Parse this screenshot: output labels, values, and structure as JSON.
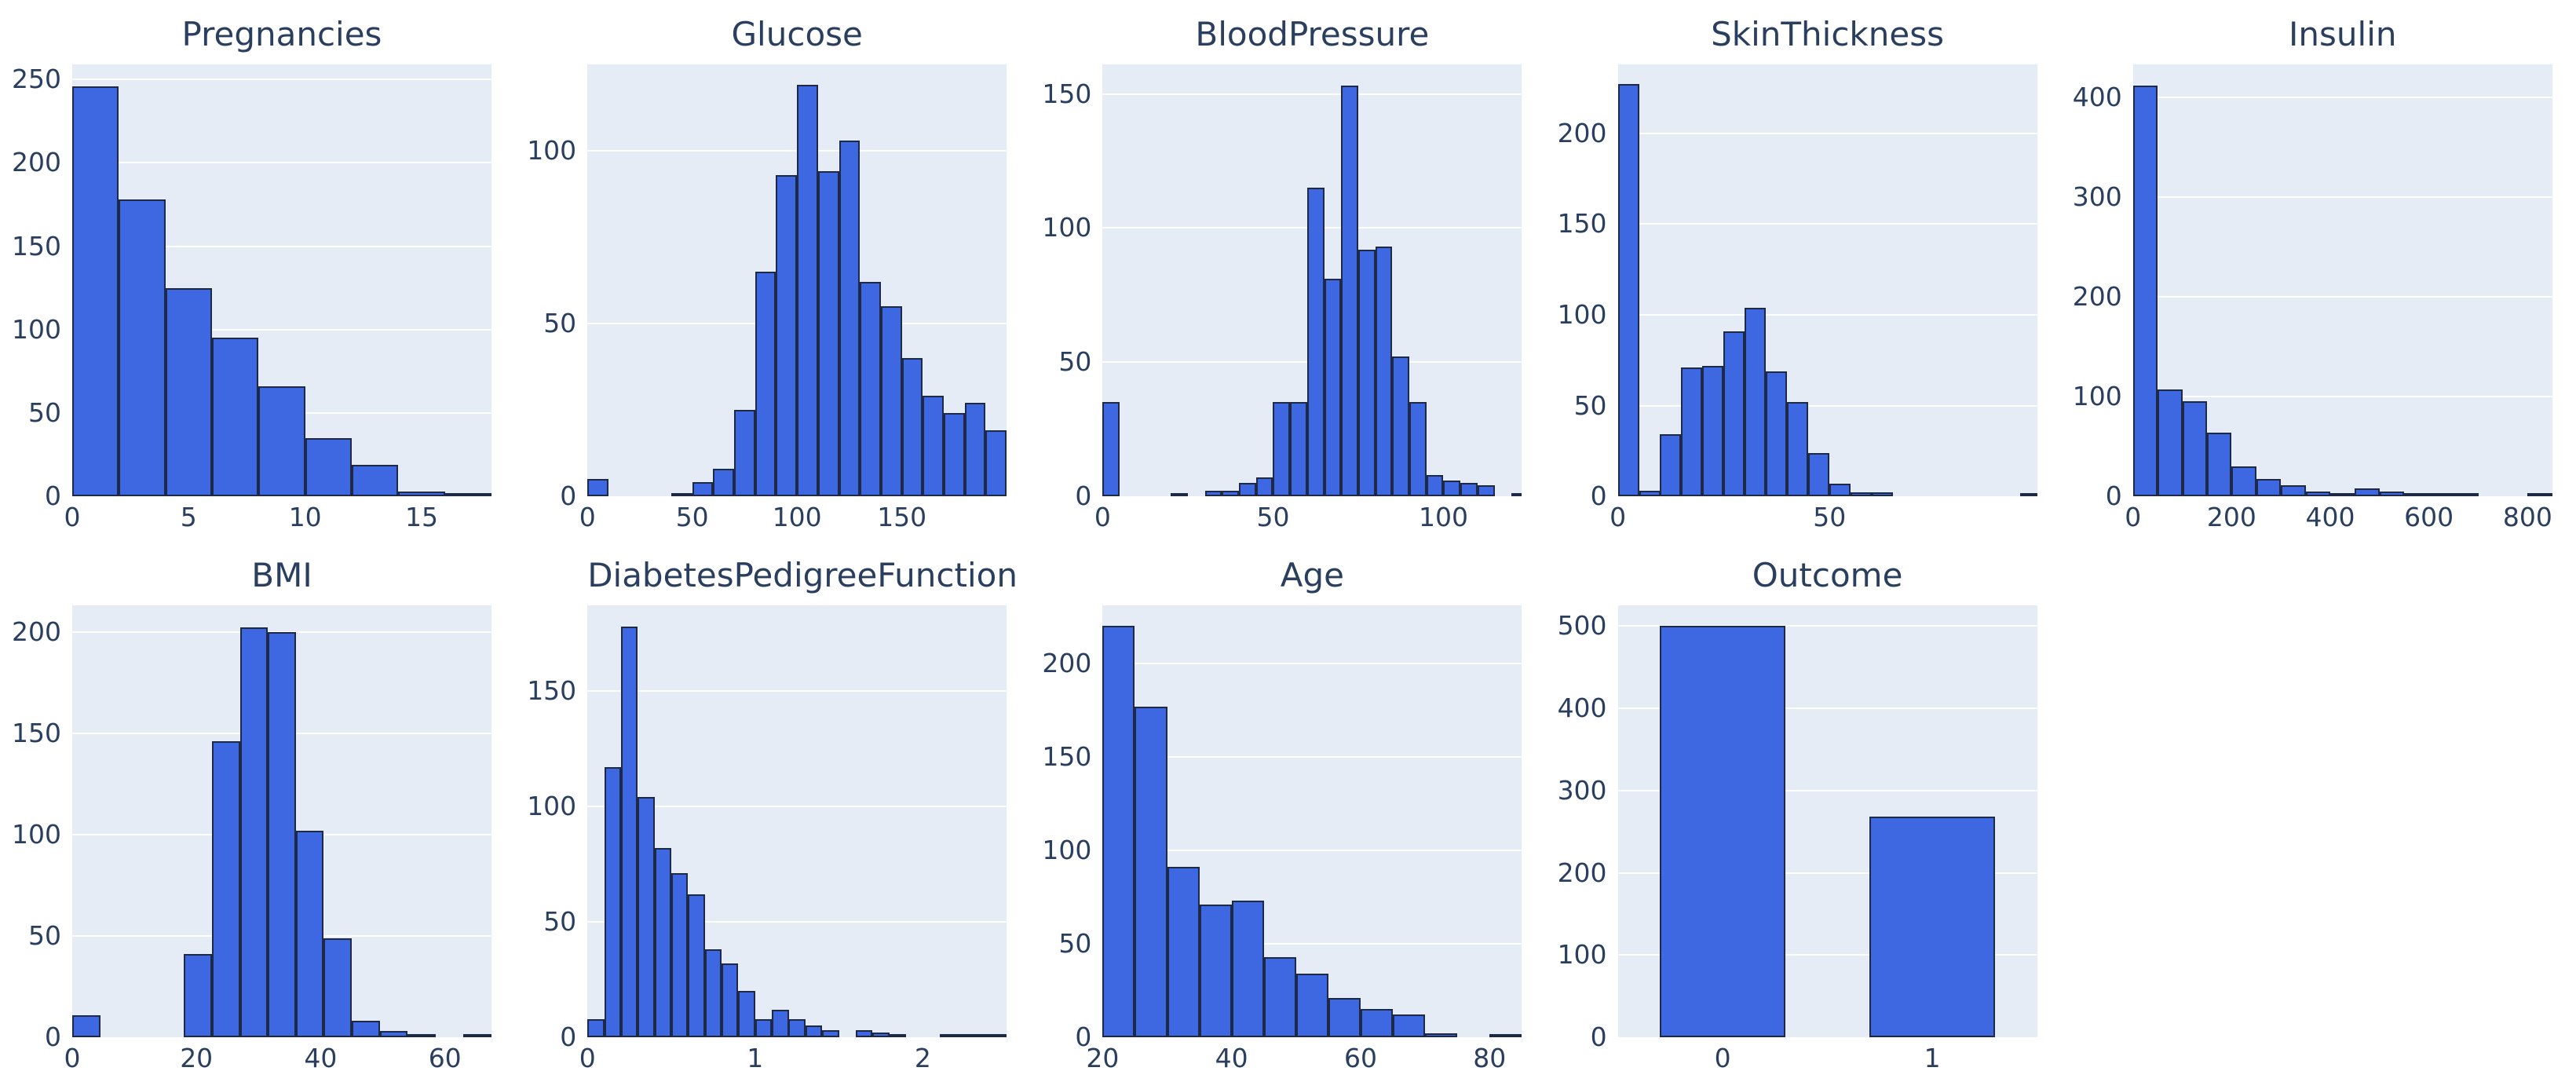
{
  "figure": {
    "background": "#ffffff",
    "plot_bg": "#e5ecf6",
    "grid_color": "#ffffff",
    "bar_fill": "#3e68e2",
    "bar_edge": "#1e2a45",
    "text_color": "#2a3f5f",
    "rows": 2,
    "columns": 5
  },
  "chart_data": [
    {
      "type": "histogram",
      "title": "Pregnancies",
      "xlim": [
        0,
        18
      ],
      "ylim": [
        0,
        259
      ],
      "yticks": [
        0,
        50,
        100,
        150,
        200,
        250
      ],
      "xticks": [
        0,
        5,
        10,
        15
      ],
      "bins": [
        {
          "x0": 0,
          "x1": 2,
          "count": 246
        },
        {
          "x0": 2,
          "x1": 4,
          "count": 178
        },
        {
          "x0": 4,
          "x1": 6,
          "count": 125
        },
        {
          "x0": 6,
          "x1": 8,
          "count": 95
        },
        {
          "x0": 8,
          "x1": 10,
          "count": 66
        },
        {
          "x0": 10,
          "x1": 12,
          "count": 35
        },
        {
          "x0": 12,
          "x1": 14,
          "count": 19
        },
        {
          "x0": 14,
          "x1": 16,
          "count": 3
        },
        {
          "x0": 16,
          "x1": 18,
          "count": 1
        }
      ]
    },
    {
      "type": "histogram",
      "title": "Glucose",
      "xlim": [
        0,
        200
      ],
      "ylim": [
        0,
        125
      ],
      "yticks": [
        0,
        50,
        100
      ],
      "xticks": [
        0,
        50,
        100,
        150
      ],
      "bins": [
        {
          "x0": 0,
          "x1": 10,
          "count": 5
        },
        {
          "x0": 40,
          "x1": 50,
          "count": 1
        },
        {
          "x0": 50,
          "x1": 60,
          "count": 4
        },
        {
          "x0": 60,
          "x1": 70,
          "count": 8
        },
        {
          "x0": 70,
          "x1": 80,
          "count": 25
        },
        {
          "x0": 80,
          "x1": 90,
          "count": 65
        },
        {
          "x0": 90,
          "x1": 100,
          "count": 93
        },
        {
          "x0": 100,
          "x1": 110,
          "count": 119
        },
        {
          "x0": 110,
          "x1": 120,
          "count": 94
        },
        {
          "x0": 120,
          "x1": 130,
          "count": 103
        },
        {
          "x0": 130,
          "x1": 140,
          "count": 62
        },
        {
          "x0": 140,
          "x1": 150,
          "count": 55
        },
        {
          "x0": 150,
          "x1": 160,
          "count": 40
        },
        {
          "x0": 160,
          "x1": 170,
          "count": 29
        },
        {
          "x0": 170,
          "x1": 180,
          "count": 24
        },
        {
          "x0": 180,
          "x1": 190,
          "count": 27
        },
        {
          "x0": 190,
          "x1": 200,
          "count": 19
        }
      ]
    },
    {
      "type": "histogram",
      "title": "BloodPressure",
      "xlim": [
        0,
        123
      ],
      "ylim": [
        0,
        161
      ],
      "yticks": [
        0,
        50,
        100,
        150
      ],
      "xticks": [
        0,
        50,
        100
      ],
      "bins": [
        {
          "x0": 0,
          "x1": 5,
          "count": 35
        },
        {
          "x0": 20,
          "x1": 25,
          "count": 1
        },
        {
          "x0": 30,
          "x1": 35,
          "count": 2
        },
        {
          "x0": 35,
          "x1": 40,
          "count": 2
        },
        {
          "x0": 40,
          "x1": 45,
          "count": 5
        },
        {
          "x0": 45,
          "x1": 50,
          "count": 7
        },
        {
          "x0": 50,
          "x1": 55,
          "count": 35
        },
        {
          "x0": 55,
          "x1": 60,
          "count": 35
        },
        {
          "x0": 60,
          "x1": 65,
          "count": 115
        },
        {
          "x0": 65,
          "x1": 70,
          "count": 81
        },
        {
          "x0": 70,
          "x1": 75,
          "count": 153
        },
        {
          "x0": 75,
          "x1": 80,
          "count": 92
        },
        {
          "x0": 80,
          "x1": 85,
          "count": 93
        },
        {
          "x0": 85,
          "x1": 90,
          "count": 52
        },
        {
          "x0": 90,
          "x1": 95,
          "count": 35
        },
        {
          "x0": 95,
          "x1": 100,
          "count": 8
        },
        {
          "x0": 100,
          "x1": 105,
          "count": 6
        },
        {
          "x0": 105,
          "x1": 110,
          "count": 5
        },
        {
          "x0": 110,
          "x1": 115,
          "count": 4
        },
        {
          "x0": 120,
          "x1": 123,
          "count": 1
        }
      ]
    },
    {
      "type": "histogram",
      "title": "SkinThickness",
      "xlim": [
        0,
        99
      ],
      "ylim": [
        0,
        238
      ],
      "yticks": [
        0,
        50,
        100,
        150,
        200
      ],
      "xticks": [
        0,
        50
      ],
      "bins": [
        {
          "x0": 0,
          "x1": 5,
          "count": 227
        },
        {
          "x0": 5,
          "x1": 10,
          "count": 3
        },
        {
          "x0": 10,
          "x1": 15,
          "count": 34
        },
        {
          "x0": 15,
          "x1": 20,
          "count": 71
        },
        {
          "x0": 20,
          "x1": 25,
          "count": 72
        },
        {
          "x0": 25,
          "x1": 30,
          "count": 91
        },
        {
          "x0": 30,
          "x1": 35,
          "count": 104
        },
        {
          "x0": 35,
          "x1": 40,
          "count": 69
        },
        {
          "x0": 40,
          "x1": 45,
          "count": 52
        },
        {
          "x0": 45,
          "x1": 50,
          "count": 24
        },
        {
          "x0": 50,
          "x1": 55,
          "count": 7
        },
        {
          "x0": 55,
          "x1": 60,
          "count": 2
        },
        {
          "x0": 60,
          "x1": 65,
          "count": 2
        },
        {
          "x0": 95,
          "x1": 99,
          "count": 1
        }
      ]
    },
    {
      "type": "histogram",
      "title": "Insulin",
      "xlim": [
        0,
        850
      ],
      "ylim": [
        0,
        433
      ],
      "yticks": [
        0,
        100,
        200,
        300,
        400
      ],
      "xticks": [
        0,
        200,
        400,
        600,
        800
      ],
      "bins": [
        {
          "x0": 0,
          "x1": 50,
          "count": 412
        },
        {
          "x0": 50,
          "x1": 100,
          "count": 107
        },
        {
          "x0": 100,
          "x1": 150,
          "count": 95
        },
        {
          "x0": 150,
          "x1": 200,
          "count": 64
        },
        {
          "x0": 200,
          "x1": 250,
          "count": 30
        },
        {
          "x0": 250,
          "x1": 300,
          "count": 17
        },
        {
          "x0": 300,
          "x1": 350,
          "count": 11
        },
        {
          "x0": 350,
          "x1": 400,
          "count": 5
        },
        {
          "x0": 400,
          "x1": 450,
          "count": 2
        },
        {
          "x0": 450,
          "x1": 500,
          "count": 8
        },
        {
          "x0": 500,
          "x1": 550,
          "count": 5
        },
        {
          "x0": 550,
          "x1": 600,
          "count": 2
        },
        {
          "x0": 600,
          "x1": 650,
          "count": 1
        },
        {
          "x0": 650,
          "x1": 700,
          "count": 1
        },
        {
          "x0": 800,
          "x1": 850,
          "count": 1
        }
      ]
    },
    {
      "type": "histogram",
      "title": "BMI",
      "xlim": [
        0,
        67.5
      ],
      "ylim": [
        0,
        213
      ],
      "yticks": [
        0,
        50,
        100,
        150,
        200
      ],
      "xticks": [
        0,
        20,
        40,
        60
      ],
      "bins": [
        {
          "x0": 0,
          "x1": 4.5,
          "count": 11
        },
        {
          "x0": 18,
          "x1": 22.5,
          "count": 41
        },
        {
          "x0": 22.5,
          "x1": 27,
          "count": 146
        },
        {
          "x0": 27,
          "x1": 31.5,
          "count": 202
        },
        {
          "x0": 31.5,
          "x1": 36,
          "count": 200
        },
        {
          "x0": 36,
          "x1": 40.5,
          "count": 102
        },
        {
          "x0": 40.5,
          "x1": 45,
          "count": 49
        },
        {
          "x0": 45,
          "x1": 49.5,
          "count": 8
        },
        {
          "x0": 49.5,
          "x1": 54,
          "count": 3
        },
        {
          "x0": 54,
          "x1": 58.5,
          "count": 1
        },
        {
          "x0": 63,
          "x1": 67.5,
          "count": 1
        }
      ]
    },
    {
      "type": "histogram",
      "title": "DiabetesPedigreeFunction",
      "xlim": [
        0,
        2.5
      ],
      "ylim": [
        0,
        187
      ],
      "yticks": [
        0,
        50,
        100,
        150
      ],
      "xticks": [
        0,
        1,
        2
      ],
      "bins": [
        {
          "x0": 0,
          "x1": 0.1,
          "count": 8
        },
        {
          "x0": 0.1,
          "x1": 0.2,
          "count": 117
        },
        {
          "x0": 0.2,
          "x1": 0.3,
          "count": 178
        },
        {
          "x0": 0.3,
          "x1": 0.4,
          "count": 104
        },
        {
          "x0": 0.4,
          "x1": 0.5,
          "count": 82
        },
        {
          "x0": 0.5,
          "x1": 0.6,
          "count": 71
        },
        {
          "x0": 0.6,
          "x1": 0.7,
          "count": 62
        },
        {
          "x0": 0.7,
          "x1": 0.8,
          "count": 38
        },
        {
          "x0": 0.8,
          "x1": 0.9,
          "count": 32
        },
        {
          "x0": 0.9,
          "x1": 1.0,
          "count": 20
        },
        {
          "x0": 1.0,
          "x1": 1.1,
          "count": 8
        },
        {
          "x0": 1.1,
          "x1": 1.2,
          "count": 12
        },
        {
          "x0": 1.2,
          "x1": 1.3,
          "count": 8
        },
        {
          "x0": 1.3,
          "x1": 1.4,
          "count": 5
        },
        {
          "x0": 1.4,
          "x1": 1.5,
          "count": 3
        },
        {
          "x0": 1.6,
          "x1": 1.7,
          "count": 3
        },
        {
          "x0": 1.7,
          "x1": 1.8,
          "count": 2
        },
        {
          "x0": 1.8,
          "x1": 1.9,
          "count": 1
        },
        {
          "x0": 2.1,
          "x1": 2.2,
          "count": 1
        },
        {
          "x0": 2.2,
          "x1": 2.3,
          "count": 1
        },
        {
          "x0": 2.3,
          "x1": 2.4,
          "count": 1
        },
        {
          "x0": 2.4,
          "x1": 2.5,
          "count": 1
        }
      ]
    },
    {
      "type": "histogram",
      "title": "Age",
      "xlim": [
        20,
        85
      ],
      "ylim": [
        0,
        231
      ],
      "yticks": [
        0,
        50,
        100,
        150,
        200
      ],
      "xticks": [
        20,
        40,
        60,
        80
      ],
      "bins": [
        {
          "x0": 20,
          "x1": 25,
          "count": 220
        },
        {
          "x0": 25,
          "x1": 30,
          "count": 177
        },
        {
          "x0": 30,
          "x1": 35,
          "count": 91
        },
        {
          "x0": 35,
          "x1": 40,
          "count": 71
        },
        {
          "x0": 40,
          "x1": 45,
          "count": 73
        },
        {
          "x0": 45,
          "x1": 50,
          "count": 43
        },
        {
          "x0": 50,
          "x1": 55,
          "count": 34
        },
        {
          "x0": 55,
          "x1": 60,
          "count": 21
        },
        {
          "x0": 60,
          "x1": 65,
          "count": 15
        },
        {
          "x0": 65,
          "x1": 70,
          "count": 12
        },
        {
          "x0": 70,
          "x1": 75,
          "count": 2
        },
        {
          "x0": 80,
          "x1": 85,
          "count": 1
        }
      ]
    },
    {
      "type": "bar",
      "title": "Outcome",
      "xlim": [
        -0.5,
        1.5
      ],
      "ylim": [
        0,
        525
      ],
      "yticks": [
        0,
        100,
        200,
        300,
        400,
        500
      ],
      "xticks": [
        0,
        1
      ],
      "bins": [
        {
          "x0": -0.3,
          "x1": 0.3,
          "count": 500
        },
        {
          "x0": 0.7,
          "x1": 1.3,
          "count": 268
        }
      ]
    }
  ]
}
